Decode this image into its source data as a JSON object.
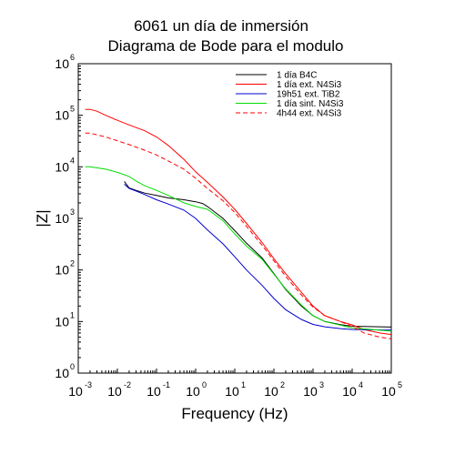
{
  "chart_data": {
    "type": "line",
    "title": "6061 un día de inmersión",
    "subtitle": "Diagrama de Bode para el modulo",
    "xlabel": "Frequency (Hz)",
    "ylabel": "|Z|",
    "xscale": "log",
    "yscale": "log",
    "xlim": [
      0.001,
      100000
    ],
    "ylim": [
      1,
      1000000
    ],
    "x_ticks": [
      {
        "base": "10",
        "exp": "-3"
      },
      {
        "base": "10",
        "exp": "-2"
      },
      {
        "base": "10",
        "exp": "-1"
      },
      {
        "base": "10",
        "exp": "0"
      },
      {
        "base": "10",
        "exp": "1"
      },
      {
        "base": "10",
        "exp": "2"
      },
      {
        "base": "10",
        "exp": "3"
      },
      {
        "base": "10",
        "exp": "4"
      },
      {
        "base": "10",
        "exp": "5"
      }
    ],
    "y_ticks": [
      {
        "base": "10",
        "exp": "0"
      },
      {
        "base": "10",
        "exp": "1"
      },
      {
        "base": "10",
        "exp": "2"
      },
      {
        "base": "10",
        "exp": "3"
      },
      {
        "base": "10",
        "exp": "4"
      },
      {
        "base": "10",
        "exp": "5"
      },
      {
        "base": "10",
        "exp": "6"
      }
    ],
    "legend_position": "top-right",
    "grid": false,
    "series": [
      {
        "name": "1 día B4C",
        "color": "#000000",
        "dash": "solid",
        "points": [
          [
            0.015,
            5200
          ],
          [
            0.02,
            3900
          ],
          [
            0.03,
            3500
          ],
          [
            0.05,
            3100
          ],
          [
            0.1,
            2800
          ],
          [
            0.2,
            2500
          ],
          [
            0.5,
            2300
          ],
          [
            1,
            2100
          ],
          [
            1.5,
            1950
          ],
          [
            2,
            1700
          ],
          [
            3,
            1350
          ],
          [
            5,
            1000
          ],
          [
            10,
            580
          ],
          [
            20,
            330
          ],
          [
            50,
            170
          ],
          [
            100,
            85
          ],
          [
            200,
            42
          ],
          [
            500,
            20
          ],
          [
            1000,
            13
          ],
          [
            2000,
            10
          ],
          [
            5000,
            8.7
          ],
          [
            10000,
            8.1
          ],
          [
            100000,
            7.8
          ]
        ]
      },
      {
        "name": "1 día ext. N4Si3",
        "color": "#ff0000",
        "dash": "solid",
        "points": [
          [
            0.0015,
            130000
          ],
          [
            0.002,
            130000
          ],
          [
            0.003,
            120000
          ],
          [
            0.005,
            100000
          ],
          [
            0.01,
            80000
          ],
          [
            0.02,
            65000
          ],
          [
            0.05,
            50000
          ],
          [
            0.1,
            38000
          ],
          [
            0.2,
            26000
          ],
          [
            0.5,
            14000
          ],
          [
            1,
            8000
          ],
          [
            2,
            5000
          ],
          [
            5,
            2600
          ],
          [
            10,
            1500
          ],
          [
            20,
            800
          ],
          [
            50,
            340
          ],
          [
            100,
            165
          ],
          [
            200,
            85
          ],
          [
            500,
            37
          ],
          [
            1000,
            20
          ],
          [
            2000,
            13
          ],
          [
            5000,
            10
          ],
          [
            10000,
            8.6
          ],
          [
            20000,
            7
          ],
          [
            50000,
            6
          ],
          [
            100000,
            5.6
          ]
        ]
      },
      {
        "name": "19h51 ext. TiB2",
        "color": "#0000cc",
        "dash": "solid",
        "points": [
          [
            0.015,
            4600
          ],
          [
            0.02,
            3800
          ],
          [
            0.03,
            3400
          ],
          [
            0.05,
            2900
          ],
          [
            0.1,
            2300
          ],
          [
            0.2,
            1900
          ],
          [
            0.5,
            1450
          ],
          [
            1,
            1000
          ],
          [
            2,
            600
          ],
          [
            5,
            320
          ],
          [
            10,
            180
          ],
          [
            20,
            100
          ],
          [
            50,
            50
          ],
          [
            100,
            28
          ],
          [
            200,
            17
          ],
          [
            500,
            11
          ],
          [
            1000,
            8.8
          ],
          [
            2000,
            7.9
          ],
          [
            5000,
            7.3
          ],
          [
            10000,
            7
          ],
          [
            100000,
            6.8
          ]
        ]
      },
      {
        "name": "1 día sint. N4Si3",
        "color": "#00dd00",
        "dash": "solid",
        "points": [
          [
            0.0015,
            10000
          ],
          [
            0.002,
            10000
          ],
          [
            0.005,
            9000
          ],
          [
            0.01,
            7800
          ],
          [
            0.02,
            6500
          ],
          [
            0.03,
            5300
          ],
          [
            0.05,
            4300
          ],
          [
            0.1,
            3500
          ],
          [
            0.2,
            2800
          ],
          [
            0.5,
            2000
          ],
          [
            1,
            1700
          ],
          [
            2,
            1500
          ],
          [
            3,
            1200
          ],
          [
            5,
            900
          ],
          [
            10,
            500
          ],
          [
            20,
            290
          ],
          [
            50,
            160
          ],
          [
            100,
            83
          ],
          [
            200,
            43
          ],
          [
            500,
            21
          ],
          [
            1000,
            13
          ],
          [
            2000,
            10
          ],
          [
            5000,
            8.5
          ],
          [
            10000,
            7.5
          ],
          [
            100000,
            6.5
          ]
        ]
      },
      {
        "name": "4h44 ext. N4Si3",
        "color": "#ff0000",
        "dash": "dashed",
        "points": [
          [
            0.0015,
            45000
          ],
          [
            0.002,
            45000
          ],
          [
            0.005,
            38000
          ],
          [
            0.01,
            32000
          ],
          [
            0.02,
            27000
          ],
          [
            0.05,
            21000
          ],
          [
            0.1,
            17000
          ],
          [
            0.2,
            13000
          ],
          [
            0.5,
            9000
          ],
          [
            1,
            6000
          ],
          [
            2,
            3800
          ],
          [
            5,
            2200
          ],
          [
            10,
            1300
          ],
          [
            20,
            700
          ],
          [
            50,
            300
          ],
          [
            100,
            150
          ],
          [
            200,
            75
          ],
          [
            500,
            33
          ],
          [
            1000,
            19
          ],
          [
            2000,
            13
          ],
          [
            5000,
            10
          ],
          [
            10000,
            8
          ],
          [
            20000,
            6
          ],
          [
            50000,
            5
          ],
          [
            100000,
            4.6
          ]
        ]
      }
    ]
  }
}
